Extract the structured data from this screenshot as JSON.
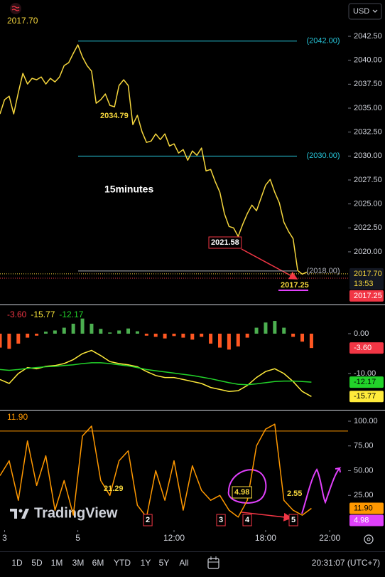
{
  "header": {
    "currency": "USD",
    "watermark": "TradingView"
  },
  "chart_data": [
    {
      "type": "line",
      "title": "15minutes",
      "xlim": [
        0,
        76
      ],
      "ylim": [
        2014.5,
        2046.29
      ],
      "yticks": [
        {
          "value": 2020,
          "label": "2020.00"
        },
        {
          "value": 2022.5,
          "label": "2022.50"
        },
        {
          "value": 2025,
          "label": "2025.00"
        },
        {
          "value": 2027.5,
          "label": "2027.50"
        },
        {
          "value": 2030,
          "label": "2030.00"
        },
        {
          "value": 2032.5,
          "label": "2032.50"
        },
        {
          "value": 2035,
          "label": "2035.00"
        },
        {
          "value": 2037.5,
          "label": "2037.50"
        },
        {
          "value": 2040,
          "label": "2040.00"
        },
        {
          "value": 2042.5,
          "label": "2042.50"
        }
      ],
      "color": "#f5d63d",
      "values": [
        2034.4,
        2035.88,
        2036.25,
        2034.4,
        2036.63,
        2038.63,
        2037.52,
        2038.11,
        2037.96,
        2038.26,
        2037.52,
        2038.11,
        2037.74,
        2038.26,
        2039.45,
        2039.75,
        2040.72,
        2041.61,
        2040.34,
        2039.45,
        2038.86,
        2035.51,
        2035.88,
        2036.48,
        2035.29,
        2035.14,
        2037.37,
        2037.96,
        2037.37,
        2033.28,
        2034.25,
        2032.54,
        2031.42,
        2031.57,
        2032.31,
        2031.72,
        2032.31,
        2031.05,
        2031.27,
        2030.31,
        2030.68,
        2029.56,
        2030.53,
        2030.08,
        2030.83,
        2028.45,
        2028.6,
        2027.33,
        2026.22,
        2023.99,
        2022.65,
        2022.5,
        2021.61,
        2022.87,
        2023.99,
        2024.88,
        2024.28,
        2025.62,
        2026.96,
        2027.56,
        2026.22,
        2025.1,
        2023.09,
        2022.13,
        2021.38,
        2018.04,
        2017.67,
        2017.89
      ],
      "levels": [
        {
          "value": 2042,
          "label": "(2042.00)",
          "color": "#26c6da"
        },
        {
          "value": 2030,
          "label": "(2030.00)",
          "color": "#26c6da"
        },
        {
          "value": 2018,
          "label": "(2018.00)",
          "color": "#b2b5be"
        }
      ],
      "price_tags": [
        {
          "value": 2017.7,
          "label": "2017.70",
          "sublabel": "13:53",
          "color": "#131722",
          "text_color": "#f5d63d"
        },
        {
          "value": 2017.25,
          "label": "2017.25",
          "color": "#f23645",
          "text_color": "#ffffff"
        }
      ],
      "annotations": [
        "2034.79",
        "2021.58",
        "2017.25"
      ]
    },
    {
      "type": "combo",
      "xlim": [
        0,
        76
      ],
      "ylim": [
        -18.93,
        6.96
      ],
      "yticks": [
        {
          "value": 0,
          "label": "0.00"
        },
        {
          "value": -10,
          "label": "-10.00"
        }
      ],
      "x": [
        0,
        2,
        4,
        6,
        8,
        10,
        12,
        14,
        16,
        18,
        20,
        22,
        24,
        26,
        28,
        30,
        32,
        34,
        36,
        38,
        40,
        42,
        44,
        46,
        48,
        50,
        52,
        54,
        56,
        58,
        60,
        62,
        64,
        66,
        68
      ],
      "series": [
        {
          "type": "bar",
          "label": "-3.60",
          "color": "#f23645",
          "positive_color": "#4caf50",
          "negative_color": "#ff5722",
          "values": [
            -3.5,
            -3.8,
            -2.5,
            -1.0,
            -0.5,
            0.5,
            0.8,
            1.5,
            2.5,
            3.8,
            2.5,
            1.2,
            0.3,
            0.8,
            1.3,
            0.6,
            -0.5,
            -0.8,
            -1.2,
            -0.6,
            -1.0,
            -1.5,
            -0.8,
            -2.5,
            -3.5,
            -4.0,
            -3.2,
            -1.0,
            1.5,
            2.8,
            3.2,
            1.5,
            -0.8,
            -2.0,
            -3.6
          ]
        },
        {
          "type": "line",
          "label": "-15.77",
          "color": "#ffeb3b",
          "values": [
            -11.5,
            -12.5,
            -10,
            -8.5,
            -8.8,
            -8.2,
            -8,
            -7.5,
            -6.5,
            -5,
            -4.2,
            -5.5,
            -7,
            -7.5,
            -7.8,
            -8.3,
            -9.5,
            -10.5,
            -11,
            -11,
            -11.5,
            -12,
            -12.5,
            -13.5,
            -14,
            -14.5,
            -14.3,
            -13,
            -11,
            -9.5,
            -8.8,
            -10,
            -12,
            -14.5,
            -15.77
          ]
        },
        {
          "type": "line",
          "label": "-12.17",
          "color": "#22d32a",
          "values": [
            -9,
            -9.2,
            -9,
            -8.7,
            -8.5,
            -8.3,
            -8.2,
            -8,
            -7.8,
            -7.5,
            -7.3,
            -7.3,
            -7.5,
            -7.8,
            -8.1,
            -8.5,
            -9,
            -9.3,
            -9.6,
            -9.9,
            -10.2,
            -10.5,
            -10.9,
            -11.3,
            -11.8,
            -12.3,
            -12.7,
            -12.8,
            -12.6,
            -12.3,
            -12,
            -11.9,
            -11.9,
            -12.0,
            -12.17
          ]
        }
      ],
      "price_tags": [
        {
          "value": -3.6,
          "label": "-3.60",
          "color": "#f23645",
          "text_color": "#ffffff"
        },
        {
          "value": -12.17,
          "label": "-12.17",
          "color": "#22d32a",
          "text_color": "#000000"
        },
        {
          "value": -15.77,
          "label": "-15.77",
          "color": "#ffeb3b",
          "text_color": "#000000"
        }
      ]
    },
    {
      "type": "line",
      "xlim": [
        0,
        76
      ],
      "ylim": [
        -10.07,
        110.79
      ],
      "yticks": [
        {
          "value": 25,
          "label": "25.00"
        },
        {
          "value": 50,
          "label": "50.00"
        },
        {
          "value": 75,
          "label": "75.00"
        },
        {
          "value": 100,
          "label": "100.00"
        }
      ],
      "xticks": [
        {
          "value": 1,
          "label": "3"
        },
        {
          "value": 17,
          "label": "5"
        },
        {
          "value": 38,
          "label": "12:00"
        },
        {
          "value": 58,
          "label": "18:00"
        },
        {
          "value": 72,
          "label": "22:00"
        }
      ],
      "color": "#ff9800",
      "x": [
        0,
        2,
        4,
        6,
        8,
        10,
        12,
        14,
        16,
        18,
        20,
        22,
        24,
        26,
        28,
        30,
        32,
        34,
        36,
        38,
        40,
        42,
        44,
        46,
        48,
        50,
        52,
        54,
        56,
        58,
        60,
        62,
        64,
        66,
        68
      ],
      "values": [
        45,
        60,
        20,
        80,
        35,
        65,
        10,
        40,
        5,
        85,
        95,
        40,
        25,
        60,
        70,
        15,
        3,
        50,
        20,
        60,
        10,
        55,
        30,
        20,
        25,
        10,
        3,
        20,
        75,
        92,
        97,
        20,
        10,
        5,
        11.9
      ],
      "levels": [
        {
          "value": 90,
          "color": "#ff9800"
        }
      ],
      "price_tags": [
        {
          "value": 11.9,
          "label": "11.90",
          "color": "#ff9800",
          "text_color": "#000000"
        },
        {
          "value": 4.98,
          "label": "4.98",
          "color": "#e040fb",
          "text_color": "#ffffff"
        }
      ],
      "annotations": [
        "21.29",
        "4.98",
        "2.55",
        "2",
        "3",
        "4",
        "5"
      ]
    }
  ],
  "toolbar": {
    "ranges": [
      "1D",
      "5D",
      "1M",
      "3M",
      "6M",
      "YTD",
      "1Y",
      "5Y",
      "All"
    ],
    "clock": "20:31:07 (UTC+7)"
  }
}
